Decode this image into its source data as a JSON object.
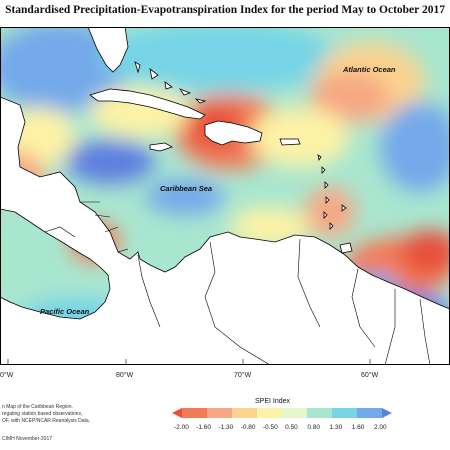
{
  "title": "Standardised Precipitation-Evapotranspiration Index for the period May to October 2017",
  "labels": {
    "atlantic": "Atlantic Ocean",
    "caribbean": "Caribbean Sea",
    "pacific": "Pacific Ocean"
  },
  "longitude_ticks": [
    "0°W",
    "80°W",
    "70°W",
    "60°W"
  ],
  "notes": {
    "line1": "n Map of the Caribbean Region.",
    "line2": "regating station based observations,",
    "line3": "OF, with NCEP/NCAR Reanalysis Data.",
    "credit": "CIMH November-2017"
  },
  "legend": {
    "title": "SPEI Index",
    "ticks": [
      "-2.00",
      "-1.60",
      "-1.30",
      "-0.80",
      "-0.50",
      "0.50",
      "0.80",
      "1.30",
      "1.60",
      "2.00"
    ],
    "colors": [
      "#e8503a",
      "#f27a57",
      "#f7a783",
      "#fbd38e",
      "#fdf3a6",
      "#e6f7ca",
      "#a9e6cf",
      "#76d4e6",
      "#73a9ea",
      "#5d7fe0"
    ]
  }
}
